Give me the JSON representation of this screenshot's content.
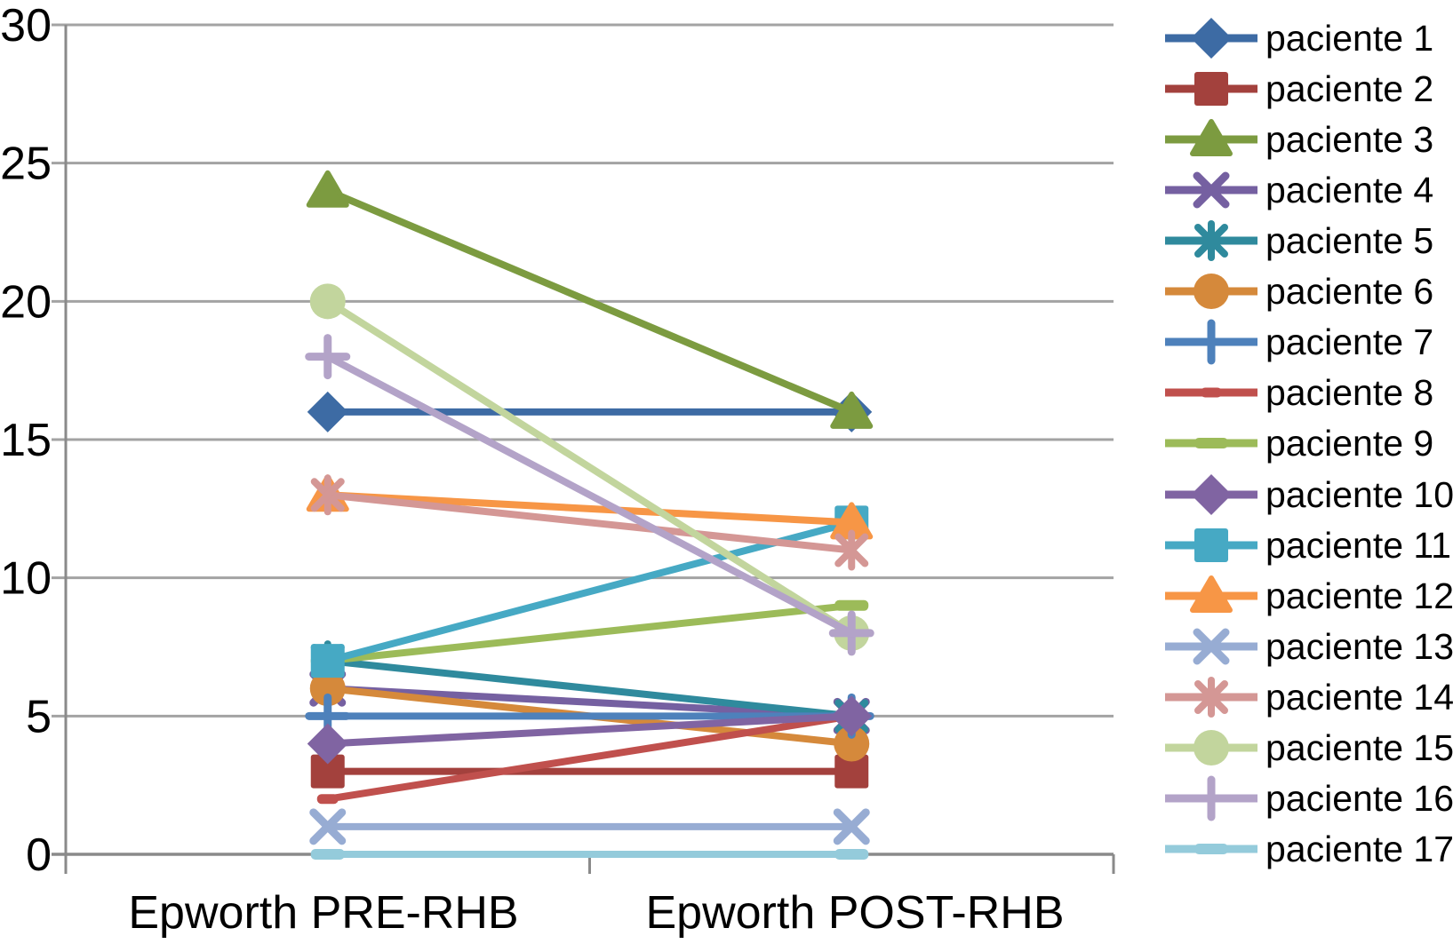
{
  "chart_data": {
    "type": "line",
    "title": "",
    "xlabel": "",
    "ylabel": "",
    "categories": [
      "Epworth PRE-RHB",
      "Epworth POST-RHB"
    ],
    "yticks": [
      0,
      5,
      10,
      15,
      20,
      25,
      30
    ],
    "ylim": [
      0,
      30
    ],
    "grid": true,
    "legend_position": "right",
    "axis_color": "#8A8A8A",
    "grid_color": "#A3A3A3",
    "text_color": "#000000",
    "series": [
      {
        "name": "paciente 1",
        "marker": "diamond",
        "color": "#3D6BA4",
        "values": [
          16,
          16
        ]
      },
      {
        "name": "paciente 2",
        "marker": "square",
        "color": "#A3413D",
        "values": [
          3,
          3
        ]
      },
      {
        "name": "paciente 3",
        "marker": "triangle",
        "color": "#7C9B40",
        "values": [
          24,
          16
        ]
      },
      {
        "name": "paciente 4",
        "marker": "x",
        "color": "#7560A1",
        "values": [
          6,
          5
        ]
      },
      {
        "name": "paciente 5",
        "marker": "asterisk",
        "color": "#2F8A9D",
        "values": [
          7,
          5
        ]
      },
      {
        "name": "paciente 6",
        "marker": "circle",
        "color": "#D5893B",
        "values": [
          6,
          4
        ]
      },
      {
        "name": "paciente 7",
        "marker": "plus",
        "color": "#4E81BB",
        "values": [
          5,
          5
        ]
      },
      {
        "name": "paciente 8",
        "marker": "dash-small",
        "color": "#C0504D",
        "values": [
          2,
          5
        ]
      },
      {
        "name": "paciente 9",
        "marker": "dash",
        "color": "#9CBB59",
        "values": [
          7,
          9
        ]
      },
      {
        "name": "paciente 10",
        "marker": "diamond",
        "color": "#8064A2",
        "values": [
          4,
          5
        ]
      },
      {
        "name": "paciente 11",
        "marker": "square",
        "color": "#46A9C4",
        "values": [
          7,
          12
        ]
      },
      {
        "name": "paciente 12",
        "marker": "triangle",
        "color": "#F79646",
        "values": [
          13,
          12
        ]
      },
      {
        "name": "paciente 13",
        "marker": "x",
        "color": "#97ACD3",
        "values": [
          1,
          1
        ]
      },
      {
        "name": "paciente 14",
        "marker": "asterisk",
        "color": "#D49795",
        "values": [
          13,
          11
        ]
      },
      {
        "name": "paciente 15",
        "marker": "circle",
        "color": "#C2D59D",
        "values": [
          20,
          8
        ]
      },
      {
        "name": "paciente 16",
        "marker": "plus",
        "color": "#B3A3C8",
        "values": [
          18,
          8
        ]
      },
      {
        "name": "paciente 17",
        "marker": "dash",
        "color": "#94CBDB",
        "values": [
          0,
          0
        ]
      }
    ]
  }
}
